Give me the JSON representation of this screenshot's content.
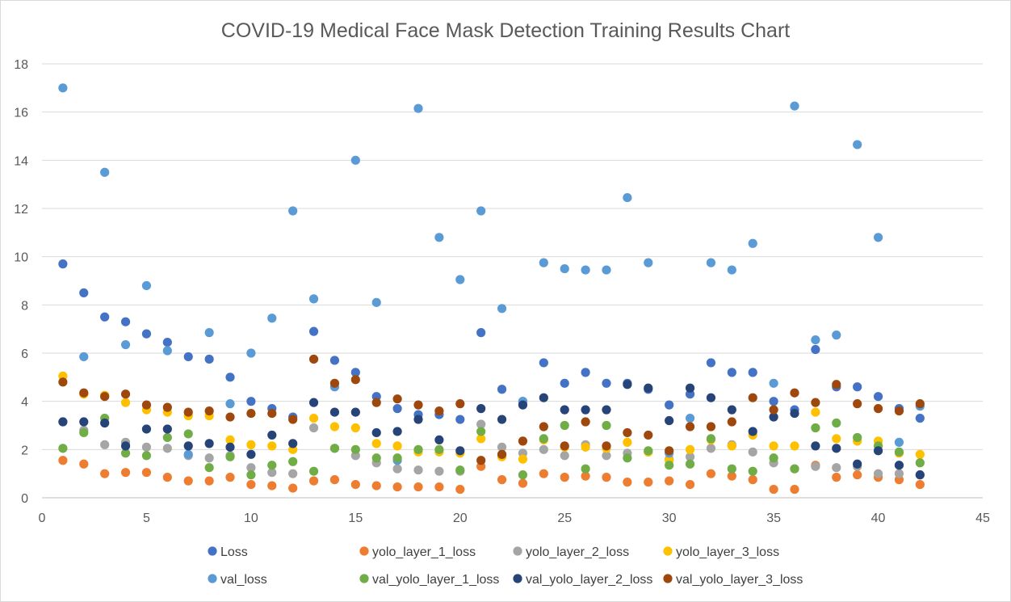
{
  "chart_data": {
    "type": "scatter",
    "title": "COVID-19 Medical Face Mask Detection Training Results Chart",
    "xlabel": "",
    "ylabel": "",
    "xlim": [
      0,
      45
    ],
    "ylim": [
      0,
      18
    ],
    "xticks": [
      0,
      5,
      10,
      15,
      20,
      25,
      30,
      35,
      40,
      45
    ],
    "yticks": [
      0,
      2,
      4,
      6,
      8,
      10,
      12,
      14,
      16,
      18
    ],
    "grid": true,
    "legend_position": "bottom",
    "x": [
      1,
      2,
      3,
      4,
      5,
      6,
      7,
      8,
      9,
      10,
      11,
      12,
      13,
      14,
      15,
      16,
      17,
      18,
      19,
      20,
      21,
      22,
      23,
      24,
      25,
      26,
      27,
      28,
      29,
      30,
      31,
      32,
      33,
      34,
      35,
      36,
      37,
      38,
      39,
      40,
      41,
      42
    ],
    "series": [
      {
        "name": "Loss",
        "color": "#4472C4",
        "values": [
          9.7,
          8.5,
          7.5,
          7.3,
          6.8,
          6.45,
          5.85,
          5.75,
          5.0,
          4.0,
          3.7,
          3.35,
          6.9,
          5.7,
          5.2,
          4.2,
          3.7,
          3.45,
          3.45,
          3.25,
          6.85,
          4.5,
          4.0,
          5.6,
          4.75,
          5.2,
          4.75,
          4.75,
          4.5,
          3.85,
          4.3,
          5.6,
          5.2,
          5.2,
          4.0,
          3.65,
          6.15,
          4.6,
          4.6,
          4.2,
          3.7,
          3.3
        ]
      },
      {
        "name": "yolo_layer_1_loss",
        "color": "#ED7D31",
        "values": [
          1.55,
          1.4,
          1.0,
          1.05,
          1.05,
          0.85,
          0.7,
          0.7,
          0.85,
          0.55,
          0.5,
          0.4,
          0.7,
          0.75,
          0.55,
          0.5,
          0.45,
          0.45,
          0.45,
          0.35,
          1.3,
          0.75,
          0.6,
          1.0,
          0.85,
          0.9,
          0.85,
          0.65,
          0.65,
          0.7,
          0.55,
          1.0,
          0.9,
          0.75,
          0.35,
          0.35,
          1.35,
          0.85,
          0.95,
          0.85,
          0.75,
          0.55
        ]
      },
      {
        "name": "yolo_layer_2_loss",
        "color": "#A5A5A5",
        "values": [
          3.15,
          2.8,
          2.2,
          2.3,
          2.1,
          2.05,
          1.75,
          1.65,
          1.75,
          1.25,
          1.05,
          1.0,
          2.9,
          2.05,
          1.75,
          1.45,
          1.2,
          1.15,
          1.1,
          1.1,
          3.05,
          2.1,
          1.85,
          2.0,
          1.75,
          2.2,
          1.75,
          1.85,
          1.9,
          1.6,
          1.7,
          2.05,
          2.2,
          1.9,
          1.45,
          1.2,
          1.3,
          1.25,
          1.3,
          1.0,
          1.0,
          0.95
        ]
      },
      {
        "name": "yolo_layer_3_loss",
        "color": "#FFC000",
        "values": [
          5.05,
          4.3,
          4.25,
          3.95,
          3.65,
          3.55,
          3.4,
          3.4,
          2.4,
          2.2,
          2.15,
          2.0,
          3.3,
          2.95,
          2.9,
          2.25,
          2.15,
          1.9,
          1.9,
          1.85,
          2.45,
          1.7,
          1.6,
          2.4,
          2.1,
          2.1,
          2.05,
          2.3,
          1.9,
          1.55,
          2.0,
          2.4,
          2.15,
          2.6,
          2.15,
          2.15,
          3.55,
          2.45,
          2.35,
          2.35,
          1.85,
          1.8
        ]
      },
      {
        "name": "val_loss",
        "color": "#5B9BD5",
        "values": [
          17.0,
          5.85,
          13.5,
          6.35,
          8.8,
          6.1,
          1.8,
          6.85,
          3.9,
          6.0,
          7.45,
          11.9,
          8.25,
          4.6,
          14.0,
          8.1,
          1.55,
          16.15,
          10.8,
          9.05,
          11.9,
          7.85,
          4.0,
          9.75,
          9.5,
          9.45,
          9.45,
          12.45,
          9.75,
          1.85,
          3.3,
          9.75,
          9.45,
          10.55,
          4.75,
          16.25,
          6.55,
          6.75,
          14.65,
          10.8,
          2.3,
          3.8
        ]
      },
      {
        "name": "val_yolo_layer_1_loss",
        "color": "#70AD47",
        "values": [
          2.05,
          2.7,
          3.3,
          1.85,
          1.75,
          2.5,
          2.65,
          1.25,
          1.7,
          0.95,
          1.35,
          1.5,
          1.1,
          2.05,
          2.0,
          1.65,
          1.65,
          2.0,
          2.0,
          1.15,
          2.75,
          1.8,
          0.95,
          2.45,
          3.0,
          1.2,
          3.0,
          1.65,
          1.95,
          1.35,
          1.4,
          2.45,
          1.2,
          1.1,
          1.65,
          1.2,
          2.9,
          3.1,
          2.5,
          2.15,
          1.9,
          1.45
        ]
      },
      {
        "name": "val_yolo_layer_2_loss",
        "color": "#264478",
        "values": [
          3.15,
          3.15,
          3.1,
          2.15,
          2.85,
          2.85,
          2.15,
          2.25,
          2.1,
          1.8,
          2.6,
          2.25,
          3.95,
          3.55,
          3.55,
          2.7,
          2.75,
          3.25,
          2.4,
          1.95,
          3.7,
          3.25,
          3.85,
          4.15,
          3.65,
          3.65,
          3.65,
          4.7,
          4.55,
          3.2,
          4.55,
          4.15,
          3.65,
          2.75,
          3.35,
          3.5,
          2.15,
          2.05,
          1.4,
          1.95,
          1.35,
          0.95
        ]
      },
      {
        "name": "val_yolo_layer_3_loss",
        "color": "#9E480E",
        "values": [
          4.8,
          4.35,
          4.2,
          4.3,
          3.85,
          3.75,
          3.55,
          3.6,
          3.35,
          3.5,
          3.5,
          3.25,
          5.75,
          4.75,
          4.9,
          3.95,
          4.1,
          3.85,
          3.6,
          3.9,
          1.55,
          1.8,
          2.35,
          2.95,
          2.15,
          3.15,
          2.15,
          2.7,
          2.6,
          1.95,
          2.95,
          2.95,
          3.15,
          4.15,
          3.65,
          4.35,
          3.95,
          4.7,
          3.9,
          3.7,
          3.6,
          3.9
        ]
      }
    ]
  }
}
